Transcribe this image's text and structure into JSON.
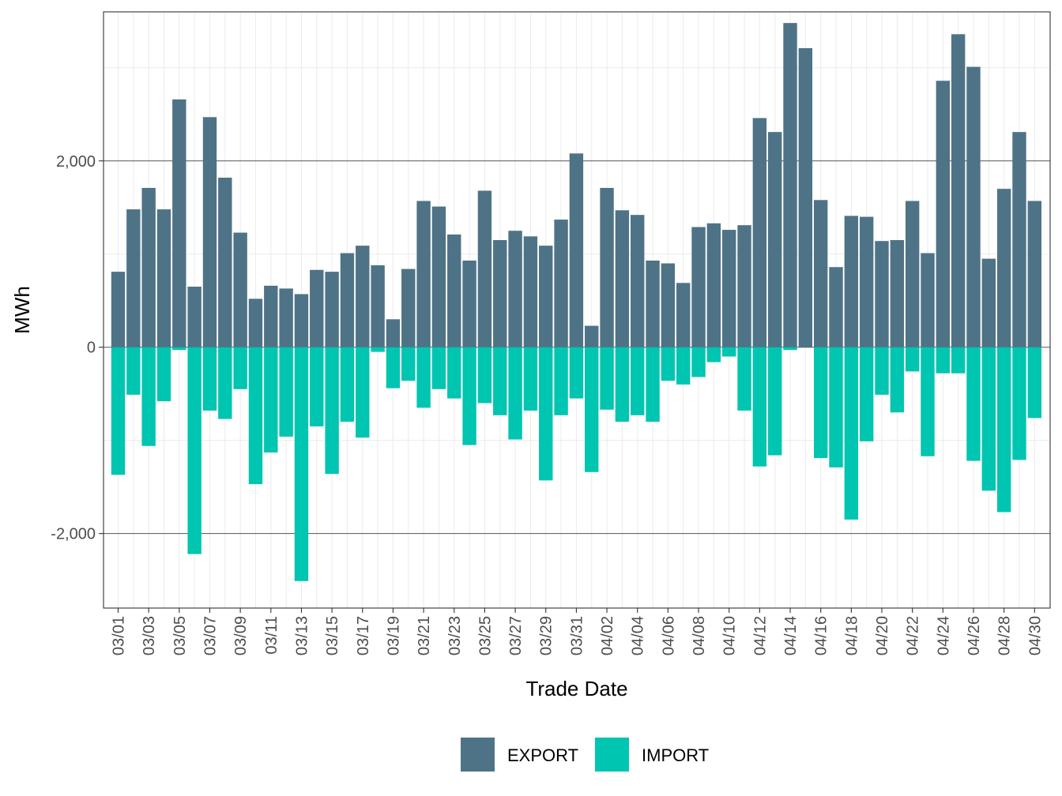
{
  "chart_data": {
    "type": "bar",
    "stacked": "diverging",
    "title": "",
    "xlabel": "Trade Date",
    "ylabel": "MWh",
    "ylim": [
      -2800,
      3600
    ],
    "y_ticks": [
      -2000,
      0,
      2000
    ],
    "y_tick_labels": [
      "-2,000",
      "0",
      "2,000"
    ],
    "categories": [
      "03/01",
      "03/02",
      "03/03",
      "03/04",
      "03/05",
      "03/06",
      "03/07",
      "03/08",
      "03/09",
      "03/10",
      "03/11",
      "03/12",
      "03/13",
      "03/14",
      "03/15",
      "03/16",
      "03/17",
      "03/18",
      "03/19",
      "03/20",
      "03/21",
      "03/22",
      "03/23",
      "03/24",
      "03/25",
      "03/26",
      "03/27",
      "03/28",
      "03/29",
      "03/30",
      "03/31",
      "04/01",
      "04/02",
      "04/03",
      "04/04",
      "04/05",
      "04/06",
      "04/07",
      "04/08",
      "04/09",
      "04/10",
      "04/11",
      "04/12",
      "04/13",
      "04/14",
      "04/15",
      "04/16",
      "04/17",
      "04/18",
      "04/19",
      "04/20",
      "04/21",
      "04/22",
      "04/23",
      "04/24",
      "04/25",
      "04/26",
      "04/27",
      "04/28",
      "04/29",
      "04/30"
    ],
    "x_tick_labels": [
      "03/01",
      "03/03",
      "03/05",
      "03/07",
      "03/09",
      "03/11",
      "03/13",
      "03/15",
      "03/17",
      "03/19",
      "03/21",
      "03/23",
      "03/25",
      "03/27",
      "03/29",
      "03/31",
      "04/02",
      "04/04",
      "04/06",
      "04/08",
      "04/10",
      "04/12",
      "04/14",
      "04/16",
      "04/18",
      "04/20",
      "04/22",
      "04/24",
      "04/26",
      "04/28",
      "04/30"
    ],
    "series": [
      {
        "name": "EXPORT",
        "color": "#4f7386",
        "values": [
          810,
          1480,
          1710,
          1480,
          2660,
          650,
          2470,
          1820,
          1230,
          520,
          660,
          630,
          570,
          830,
          810,
          1010,
          1090,
          880,
          300,
          840,
          1570,
          1510,
          1210,
          930,
          1680,
          1150,
          1250,
          1190,
          1090,
          1370,
          2080,
          230,
          1710,
          1470,
          1420,
          930,
          900,
          690,
          1290,
          1330,
          1260,
          1310,
          2460,
          2310,
          3480,
          3210,
          1580,
          860,
          1410,
          1400,
          1140,
          1150,
          1570,
          1010,
          2860,
          3360,
          3010,
          950,
          1700,
          2310,
          1570
        ]
      },
      {
        "name": "IMPORT",
        "color": "#00c5b0",
        "values": [
          -1370,
          -510,
          -1060,
          -580,
          -30,
          -2220,
          -680,
          -770,
          -450,
          -1470,
          -1130,
          -960,
          -2510,
          -850,
          -1360,
          -800,
          -970,
          -50,
          -440,
          -360,
          -650,
          -450,
          -550,
          -1050,
          -600,
          -730,
          -990,
          -680,
          -1430,
          -730,
          -550,
          -1340,
          -670,
          -800,
          -730,
          -800,
          -360,
          -400,
          -320,
          -160,
          -100,
          -680,
          -1280,
          -1160,
          -30,
          0,
          -1190,
          -1290,
          -1850,
          -1010,
          -510,
          -700,
          -260,
          -1170,
          -280,
          -280,
          -1220,
          -1540,
          -1770,
          -1210,
          -760
        ]
      }
    ],
    "legend": {
      "position": "bottom",
      "items": [
        "EXPORT",
        "IMPORT"
      ]
    },
    "grid": true
  }
}
